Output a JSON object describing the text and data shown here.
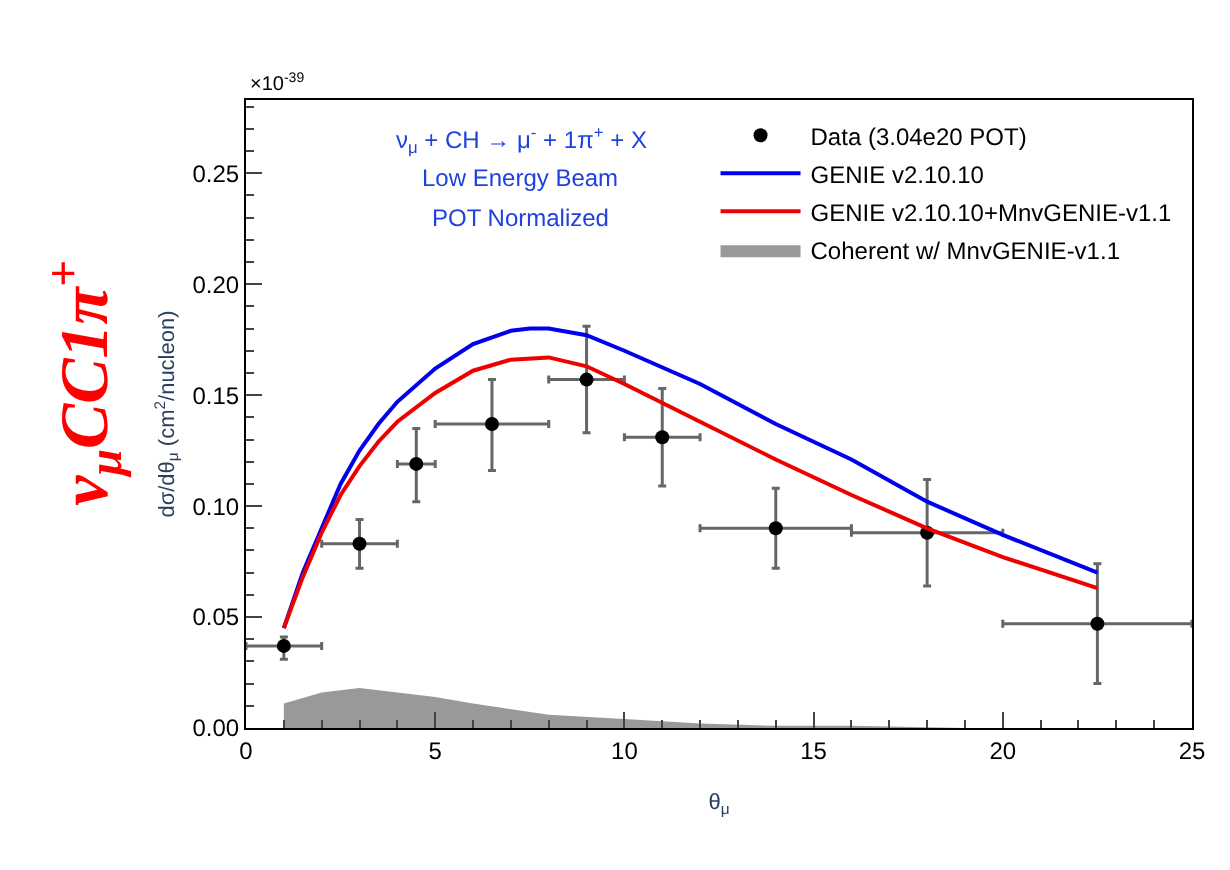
{
  "chart_data": {
    "type": "scatter",
    "title": "ν$_{μ}$CC1π$^{+}$",
    "xlabel": "θ$_{μ}$",
    "ylabel": "dσ/dθ$_{μ}$ (cm$^{2}$/nucleon)",
    "annotations": [
      "×10$^{-39}$",
      "ν$_{μ}$ + CH → μ$^{-}$ + 1π$^{+}$ + X",
      "Low Energy Beam",
      "POT Normalized"
    ],
    "xlim": [
      0,
      25
    ],
    "xticks": [
      0,
      5,
      10,
      15,
      20,
      25
    ],
    "ylim": [
      0,
      0.283
    ],
    "yticks": [
      {
        "value": 0,
        "label": "0.00"
      },
      0.05,
      {
        "value": 0.1,
        "label": "0.10"
      },
      0.15,
      {
        "value": 0.2,
        "label": "0.20"
      },
      0.25
    ],
    "legend": "top right",
    "series": [
      {
        "name": "Data (3.04e20 POT)",
        "marker": "circle",
        "color": "#000000",
        "x": [
          1,
          3,
          4.5,
          6.5,
          9,
          11,
          14,
          18,
          22.5
        ],
        "values": [
          0.037,
          0.083,
          0.119,
          0.137,
          0.157,
          0.131,
          0.09,
          0.088,
          0.047
        ],
        "errors": [
          [
            0.031,
            0.041
          ],
          [
            0.072,
            0.094
          ],
          [
            0.102,
            0.135
          ],
          [
            0.116,
            0.157
          ],
          [
            0.133,
            0.181
          ],
          [
            0.109,
            0.153
          ],
          [
            0.072,
            0.108
          ],
          [
            0.064,
            0.112
          ],
          [
            0.02,
            0.074
          ]
        ],
        "xerrors": [
          [
            0,
            2
          ],
          [
            2,
            4
          ],
          [
            4,
            5
          ],
          [
            5,
            8
          ],
          [
            8,
            10
          ],
          [
            10,
            12
          ],
          [
            12,
            16
          ],
          [
            16,
            20
          ],
          [
            20,
            25
          ]
        ]
      },
      {
        "name": "GENIE v2.10.10",
        "type": "line",
        "color": "#0000ee",
        "x": [
          1,
          1.5,
          2,
          2.5,
          3,
          3.5,
          4,
          5,
          6,
          7,
          7.5,
          8,
          9,
          10,
          12,
          14,
          16,
          18,
          20,
          22.5
        ],
        "values": [
          0.045,
          0.07,
          0.09,
          0.11,
          0.125,
          0.137,
          0.147,
          0.162,
          0.173,
          0.179,
          0.18,
          0.18,
          0.177,
          0.17,
          0.155,
          0.137,
          0.121,
          0.102,
          0.087,
          0.07
        ]
      },
      {
        "name": "GENIE v2.10.10+MnvGENIE-v1.1",
        "type": "line",
        "color": "#ee0000",
        "x": [
          1,
          1.5,
          2,
          2.5,
          3,
          3.5,
          4,
          5,
          6,
          7,
          8,
          9,
          10,
          12,
          14,
          16,
          18,
          20,
          22.5
        ],
        "values": [
          0.045,
          0.068,
          0.088,
          0.105,
          0.118,
          0.129,
          0.138,
          0.151,
          0.161,
          0.166,
          0.167,
          0.163,
          0.155,
          0.138,
          0.121,
          0.105,
          0.09,
          0.077,
          0.063
        ]
      },
      {
        "name": "Coherent w/ MnvGENIE-v1.1",
        "type": "area",
        "color": "#999999",
        "x": [
          1,
          2,
          3,
          4,
          5,
          6,
          8,
          10,
          12,
          14,
          16,
          19
        ],
        "values": [
          0.011,
          0.016,
          0.018,
          0.016,
          0.014,
          0.011,
          0.006,
          0.004,
          0.002,
          0.001,
          0.001,
          0
        ]
      }
    ]
  }
}
